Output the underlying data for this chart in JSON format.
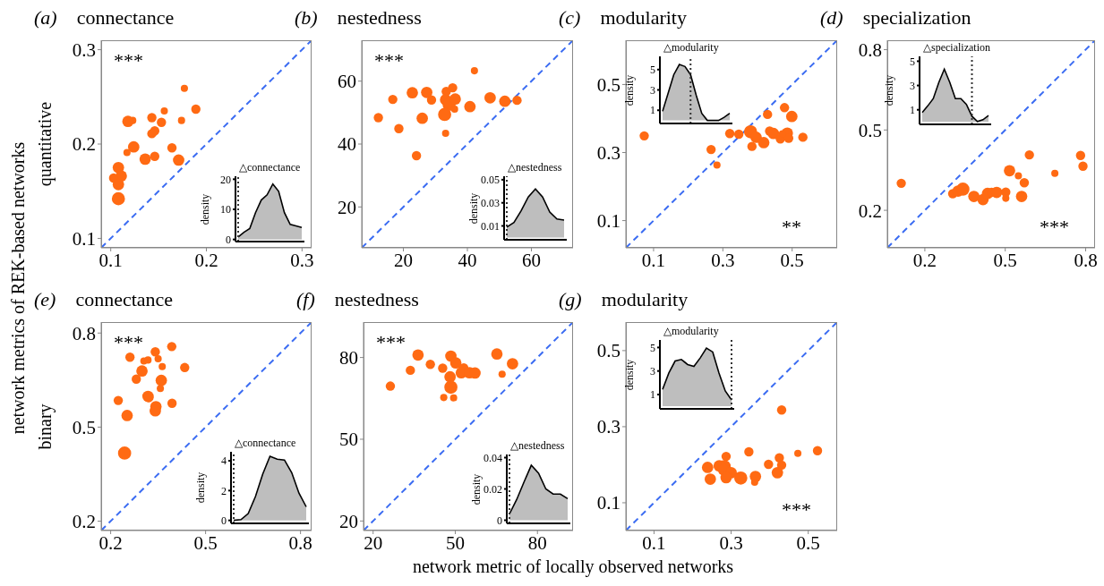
{
  "chart_data": [
    {
      "type": "bubble",
      "title": "(a) connectance",
      "ylabel": "quantitative",
      "annotations": [
        "***"
      ],
      "xlim": [
        0.09,
        0.31
      ],
      "ylim": [
        0.09,
        0.31
      ],
      "xticks": [
        0.1,
        0.2,
        0.3
      ],
      "yticks": [
        0.1,
        0.2,
        0.3
      ],
      "series": [
        {
          "type": "bubble",
          "color": "#ff6a13",
          "x": [
            0.177,
            0.189,
            0.156,
            0.143,
            0.123,
            0.118,
            0.153,
            0.174,
            0.146,
            0.143,
            0.124,
            0.117,
            0.164,
            0.136,
            0.146,
            0.171,
            0.108,
            0.111,
            0.103,
            0.108,
            0.108
          ],
          "values": [
            0.259,
            0.237,
            0.235,
            0.228,
            0.225,
            0.224,
            0.223,
            0.225,
            0.214,
            0.211,
            0.197,
            0.191,
            0.196,
            0.184,
            0.187,
            0.183,
            0.175,
            0.166,
            0.164,
            0.157,
            0.142
          ],
          "sizes": [
            0.3,
            0.5,
            0.3,
            0.5,
            0.3,
            0.75,
            0.5,
            0.3,
            0.5,
            0.5,
            0.75,
            0.3,
            0.5,
            0.75,
            0.5,
            0.75,
            0.75,
            0.75,
            0.5,
            0.75,
            1
          ]
        },
        {
          "type": "line",
          "color": "#3b6cf2",
          "line_style": "dashed",
          "x": [
            0.09,
            0.31
          ],
          "values": [
            0.09,
            0.31
          ]
        }
      ]
    },
    {
      "type": "area",
      "title": "△connectance",
      "ylabel": "density",
      "categories": [
        null,
        null,
        null,
        null,
        null,
        null,
        null,
        null,
        null,
        null,
        null,
        null
      ],
      "ylim": [
        -0.7,
        21
      ],
      "yticks": [
        0,
        10,
        20
      ],
      "series": [
        {
          "color": "#bebebe",
          "values": [
            0.8,
            2.4,
            3.6,
            8.9,
            13.1,
            14.8,
            18.4,
            16,
            8.9,
            5,
            4.5,
            4
          ]
        }
      ]
    },
    {
      "type": "bubble",
      "title": "(b) nestedness",
      "annotations": [
        "***"
      ],
      "xlim": [
        7,
        73
      ],
      "ylim": [
        7,
        73
      ],
      "xticks": [
        20,
        40,
        60
      ],
      "yticks": [
        20,
        40,
        60
      ],
      "series": [
        {
          "type": "bubble",
          "color": "#ff6a13",
          "x": [
            42.2,
            12.2,
            16.7,
            18.6,
            22.8,
            27.3,
            28.8,
            25.9,
            24.1,
            33.4,
            35.4,
            33.2,
            34.3,
            36.2,
            36.0,
            32.9,
            33.2,
            40.8,
            47.1,
            51.7,
            55.5
          ],
          "values": [
            63.3,
            48.4,
            54.2,
            44.9,
            56.3,
            56.4,
            54.0,
            48.2,
            36.3,
            56.7,
            57.9,
            54.1,
            52.6,
            54.3,
            51.1,
            49.4,
            43.4,
            51.9,
            54.7,
            53.6,
            53.9
          ],
          "sizes": [
            0.3,
            0.5,
            0.5,
            0.5,
            0.75,
            0.75,
            0.5,
            0.75,
            0.5,
            0.5,
            0.5,
            0.75,
            1,
            0.75,
            0.3,
            1,
            0.3,
            0.75,
            0.75,
            0.75,
            0.5
          ]
        },
        {
          "type": "line",
          "color": "#3b6cf2",
          "line_style": "dashed",
          "x": [
            7,
            73
          ],
          "values": [
            7,
            73
          ]
        }
      ]
    },
    {
      "type": "area",
      "title": "△nestedness",
      "ylabel": "density",
      "categories": [
        null,
        null,
        null,
        null,
        null,
        null,
        null,
        null,
        null
      ],
      "ylim": [
        -0.002,
        0.053
      ],
      "yticks": [
        0.01,
        0.03,
        0.05
      ],
      "series": [
        {
          "color": "#bebebe",
          "values": [
            0.009,
            0.013,
            0.023,
            0.035,
            0.042,
            0.035,
            0.022,
            0.016,
            0.015
          ]
        }
      ]
    },
    {
      "type": "bubble",
      "title": "(c) modularity",
      "annotations": [
        "**"
      ],
      "xlim": [
        0.02,
        0.63
      ],
      "ylim": [
        0.02,
        0.63
      ],
      "xticks": [
        0.1,
        0.3,
        0.5
      ],
      "yticks": [
        0.1,
        0.3,
        0.5
      ],
      "series": [
        {
          "type": "bubble",
          "color": "#ff6a13",
          "x": [
            0.073,
            0.266,
            0.283,
            0.32,
            0.346,
            0.38,
            0.396,
            0.384,
            0.418,
            0.429,
            0.435,
            0.446,
            0.466,
            0.478,
            0.486,
            0.499,
            0.49,
            0.531,
            0.472
          ],
          "values": [
            0.349,
            0.309,
            0.263,
            0.356,
            0.354,
            0.361,
            0.345,
            0.318,
            0.329,
            0.412,
            0.363,
            0.356,
            0.34,
            0.432,
            0.357,
            0.406,
            0.342,
            0.345,
            0.355
          ],
          "sizes": [
            0.5,
            0.5,
            0.3,
            0.5,
            0.5,
            1,
            0.75,
            0.5,
            0.75,
            0.5,
            0.5,
            0.75,
            0.5,
            0.5,
            0.75,
            0.75,
            0.5,
            0.5,
            0.3
          ]
        },
        {
          "type": "line",
          "color": "#3b6cf2",
          "line_style": "dashed",
          "x": [
            0.02,
            0.63
          ],
          "values": [
            0.02,
            0.63
          ]
        }
      ]
    },
    {
      "type": "area",
      "title": "△modularity",
      "ylabel": "density",
      "categories": [
        null,
        null,
        null,
        null,
        null,
        null,
        null,
        null,
        null,
        null,
        null,
        null,
        null
      ],
      "ylim": [
        -0.3,
        6.3
      ],
      "yticks": [
        1,
        3,
        5
      ],
      "series": [
        {
          "color": "#bebebe",
          "values": [
            0.9,
            2.7,
            4.5,
            5.5,
            5.3,
            4.5,
            2.5,
            0.7,
            0,
            0,
            0,
            0.3,
            0.7
          ]
        }
      ]
    },
    {
      "type": "bubble",
      "title": "(d) specialization",
      "annotations": [
        "***"
      ],
      "xlim": [
        0.06,
        0.835
      ],
      "ylim": [
        0.06,
        0.835
      ],
      "xticks": [
        0.2,
        0.5,
        0.8
      ],
      "yticks": [
        0.2,
        0.5,
        0.8
      ],
      "series": [
        {
          "type": "bubble",
          "color": "#ff6a13",
          "x": [
            0.112,
            0.304,
            0.324,
            0.342,
            0.383,
            0.417,
            0.434,
            0.449,
            0.468,
            0.502,
            0.502,
            0.516,
            0.549,
            0.571,
            0.561,
            0.59,
            0.685,
            0.781,
            0.79
          ],
          "values": [
            0.301,
            0.262,
            0.272,
            0.279,
            0.252,
            0.24,
            0.263,
            0.267,
            0.267,
            0.268,
            0.245,
            0.348,
            0.329,
            0.303,
            0.252,
            0.407,
            0.338,
            0.405,
            0.365
          ],
          "sizes": [
            0.5,
            0.5,
            0.75,
            1,
            0.75,
            0.75,
            0.75,
            0.5,
            0.75,
            0.5,
            0.3,
            0.75,
            0.3,
            0.5,
            0.75,
            0.5,
            0.3,
            0.5,
            0.5
          ]
        },
        {
          "type": "line",
          "color": "#3b6cf2",
          "line_style": "dashed",
          "x": [
            0.06,
            0.835
          ],
          "values": [
            0.06,
            0.835
          ]
        }
      ]
    },
    {
      "type": "area",
      "title": "△specialization",
      "ylabel": "density",
      "categories": [
        null,
        null,
        null,
        null,
        null,
        null,
        null,
        null,
        null,
        null,
        null,
        null,
        null
      ],
      "ylim": [
        -0.2,
        5.4
      ],
      "yticks": [
        1,
        3,
        5
      ],
      "series": [
        {
          "color": "#bebebe",
          "values": [
            0.78,
            1.32,
            1.92,
            3.25,
            4.35,
            3.25,
            1.92,
            1.92,
            1.44,
            0.47,
            0.03,
            0.18,
            0.52
          ]
        }
      ]
    },
    {
      "type": "bubble",
      "title": "(e) connectance",
      "ylabel": "binary",
      "annotations": [
        "***"
      ],
      "xlim": [
        0.17,
        0.835
      ],
      "ylim": [
        0.17,
        0.835
      ],
      "xticks": [
        0.2,
        0.5,
        0.8
      ],
      "yticks": [
        0.2,
        0.5,
        0.8
      ],
      "series": [
        {
          "type": "bubble",
          "color": "#ff6a13",
          "x": [
            0.261,
            0.393,
            0.341,
            0.305,
            0.318,
            0.35,
            0.434,
            0.363,
            0.299,
            0.281,
            0.36,
            0.357,
            0.318,
            0.321,
            0.224,
            0.394,
            0.343,
            0.341,
            0.252,
            0.244
          ],
          "values": [
            0.723,
            0.757,
            0.74,
            0.711,
            0.714,
            0.718,
            0.69,
            0.693,
            0.679,
            0.653,
            0.649,
            0.623,
            0.598,
            0.594,
            0.585,
            0.576,
            0.565,
            0.552,
            0.537,
            0.417
          ],
          "sizes": [
            0.5,
            0.5,
            0.5,
            0.3,
            0.3,
            0.3,
            0.5,
            0.3,
            0.75,
            0.5,
            0.75,
            0.3,
            0.75,
            0.5,
            0.5,
            0.5,
            0.75,
            0.75,
            0.75,
            1
          ]
        },
        {
          "type": "line",
          "color": "#3b6cf2",
          "line_style": "dashed",
          "x": [
            0.17,
            0.835
          ],
          "values": [
            0.17,
            0.835
          ]
        }
      ]
    },
    {
      "type": "area",
      "title": "△connectance",
      "ylabel": "density",
      "categories": [
        null,
        null,
        null,
        null,
        null,
        null,
        null,
        null,
        null,
        null,
        null
      ],
      "ylim": [
        -0.2,
        4.6
      ],
      "yticks": [
        0,
        2,
        4
      ],
      "series": [
        {
          "color": "#bebebe",
          "values": [
            0,
            0.05,
            0.46,
            1.6,
            3.1,
            4.3,
            4.1,
            4.05,
            3.2,
            1.83,
            0.91
          ]
        }
      ]
    },
    {
      "type": "bubble",
      "title": "(f) nestedness",
      "annotations": [
        "***"
      ],
      "xlim": [
        16.5,
        93
      ],
      "ylim": [
        16.5,
        93
      ],
      "xticks": [
        20,
        50,
        80
      ],
      "yticks": [
        20,
        50,
        80
      ],
      "series": [
        {
          "type": "bubble",
          "color": "#ff6a13",
          "x": [
            26.3,
            33.6,
            36.4,
            40.9,
            45.4,
            48.4,
            50.2,
            48.1,
            48.4,
            45.8,
            49.4,
            53.1,
            52.2,
            55.2,
            57.2,
            65.2,
            67.1,
            70.9
          ],
          "values": [
            69.5,
            75.3,
            80.9,
            77.5,
            76.1,
            80.5,
            78.0,
            72.9,
            69.1,
            65.3,
            65.2,
            76.2,
            74.4,
            74.4,
            74.3,
            81.3,
            73.9,
            77.7
          ],
          "sizes": [
            0.5,
            0.5,
            0.75,
            0.5,
            0.5,
            0.75,
            0.75,
            0.75,
            1,
            0.3,
            0.3,
            0.5,
            0.75,
            0.75,
            0.75,
            0.75,
            0.3,
            0.75
          ]
        },
        {
          "type": "line",
          "color": "#3b6cf2",
          "line_style": "dashed",
          "x": [
            16.5,
            93
          ],
          "values": [
            16.5,
            93
          ]
        }
      ]
    },
    {
      "type": "area",
      "title": "△nestedness",
      "ylabel": "density",
      "categories": [
        null,
        null,
        null,
        null,
        null,
        null,
        null,
        null,
        null
      ],
      "ylim": [
        -0.002,
        0.042
      ],
      "yticks": [
        0,
        0.02,
        0.04
      ],
      "series": [
        {
          "color": "#bebebe",
          "values": [
            0.004,
            0.0133,
            0.0244,
            0.0351,
            0.03,
            0.02,
            0.0167,
            0.0167,
            0.0138
          ]
        }
      ]
    },
    {
      "type": "bubble",
      "title": "(g) modularity",
      "annotations": [
        "***"
      ],
      "xlim": [
        0.027,
        0.575
      ],
      "ylim": [
        0.027,
        0.575
      ],
      "xticks": [
        0.1,
        0.3,
        0.5
      ],
      "yticks": [
        0.1,
        0.3,
        0.5
      ],
      "series": [
        {
          "type": "bubble",
          "color": "#ff6a13",
          "x": [
            0.431,
            0.524,
            0.473,
            0.346,
            0.287,
            0.425,
            0.397,
            0.431,
            0.239,
            0.269,
            0.282,
            0.28,
            0.3,
            0.42,
            0.246,
            0.287,
            0.325,
            0.363,
            0.361
          ],
          "values": [
            0.344,
            0.237,
            0.23,
            0.234,
            0.222,
            0.218,
            0.201,
            0.199,
            0.193,
            0.197,
            0.195,
            0.187,
            0.179,
            0.179,
            0.162,
            0.166,
            0.165,
            0.169,
            0.154
          ],
          "sizes": [
            0.5,
            0.5,
            0.3,
            0.5,
            0.5,
            0.5,
            0.5,
            0.5,
            0.75,
            0.75,
            1,
            0.75,
            0.75,
            0.75,
            0.75,
            0.75,
            1,
            0.75,
            0.3
          ]
        },
        {
          "type": "line",
          "color": "#3b6cf2",
          "line_style": "dashed",
          "x": [
            0.027,
            0.575
          ],
          "values": [
            0.027,
            0.575
          ]
        }
      ]
    },
    {
      "type": "area",
      "title": "△modularity",
      "ylabel": "density",
      "categories": [
        null,
        null,
        null,
        null,
        null,
        null,
        null,
        null,
        null,
        null,
        null,
        null
      ],
      "ylim": [
        -0.22,
        5.64
      ],
      "yticks": [
        1,
        3,
        5
      ],
      "series": [
        {
          "color": "#bebebe",
          "values": [
            1.43,
            2.83,
            3.85,
            3.98,
            3.55,
            3.39,
            4.11,
            4.95,
            4.62,
            2.83,
            1.31,
            0.54
          ]
        }
      ]
    },
    {
      "type": "other",
      "annotations": [
        "network metrics of REK-based networks",
        "network metric of locally observed networks"
      ]
    }
  ]
}
